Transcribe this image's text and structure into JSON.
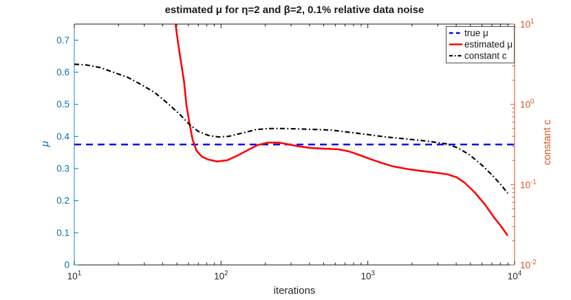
{
  "chart_data": {
    "type": "line",
    "title": "estimated μ for η=2 and β=2, 0.1% relative data noise",
    "xlabel": "iterations",
    "x_axis": {
      "scale": "log",
      "min": 10,
      "max": 10000,
      "color": "#262626",
      "ticks": [
        {
          "value": 10,
          "label": "10^1"
        },
        {
          "value": 100,
          "label": "10^2"
        },
        {
          "value": 1000,
          "label": "10^3"
        },
        {
          "value": 10000,
          "label": "10^4"
        }
      ]
    },
    "y_left": {
      "label": "μ",
      "scale": "linear",
      "min": 0,
      "max": 0.75,
      "color": "#0072BD",
      "ticks": [
        {
          "value": 0,
          "label": "0"
        },
        {
          "value": 0.1,
          "label": "0.1"
        },
        {
          "value": 0.2,
          "label": "0.2"
        },
        {
          "value": 0.3,
          "label": "0.3"
        },
        {
          "value": 0.4,
          "label": "0.4"
        },
        {
          "value": 0.5,
          "label": "0.5"
        },
        {
          "value": 0.6,
          "label": "0.6"
        },
        {
          "value": 0.7,
          "label": "0.7"
        }
      ]
    },
    "y_right": {
      "label": "constant c",
      "scale": "log",
      "min": 0.01,
      "max": 10,
      "color": "#D95319",
      "ticks": [
        {
          "value": 10,
          "label": "10^1"
        },
        {
          "value": 1,
          "label": "10^0"
        },
        {
          "value": 0.1,
          "label": "10^-1"
        },
        {
          "value": 0.01,
          "label": "10^-2"
        }
      ]
    },
    "legend": {
      "position": "top-right",
      "entries": [
        "true μ",
        "estimated μ",
        "constant c"
      ]
    },
    "series": [
      {
        "name": "true μ",
        "axis": "left",
        "color": "#0000FF",
        "style": "dashed",
        "width": 2.6,
        "points": [
          [
            10,
            0.375
          ],
          [
            10000,
            0.375
          ]
        ]
      },
      {
        "name": "estimated μ",
        "axis": "left",
        "color": "#FF0000",
        "style": "solid",
        "width": 2.6,
        "points": [
          [
            48,
            0.85
          ],
          [
            49,
            0.75
          ],
          [
            51,
            0.69
          ],
          [
            53,
            0.64
          ],
          [
            56,
            0.57
          ],
          [
            58,
            0.5
          ],
          [
            61,
            0.44
          ],
          [
            64,
            0.39
          ],
          [
            68,
            0.356
          ],
          [
            74,
            0.337
          ],
          [
            82,
            0.328
          ],
          [
            94,
            0.322
          ],
          [
            110,
            0.326
          ],
          [
            130,
            0.341
          ],
          [
            153,
            0.358
          ],
          [
            177,
            0.373
          ],
          [
            210,
            0.381
          ],
          [
            247,
            0.381
          ],
          [
            290,
            0.375
          ],
          [
            341,
            0.369
          ],
          [
            409,
            0.364
          ],
          [
            507,
            0.362
          ],
          [
            628,
            0.36
          ],
          [
            738,
            0.354
          ],
          [
            867,
            0.343
          ],
          [
            1020,
            0.331
          ],
          [
            1200,
            0.32
          ],
          [
            1480,
            0.307
          ],
          [
            1840,
            0.299
          ],
          [
            2280,
            0.293
          ],
          [
            2820,
            0.288
          ],
          [
            3490,
            0.282
          ],
          [
            4020,
            0.273
          ],
          [
            4570,
            0.256
          ],
          [
            5370,
            0.225
          ],
          [
            6310,
            0.187
          ],
          [
            7240,
            0.148
          ],
          [
            8070,
            0.121
          ],
          [
            8980,
            0.091
          ]
        ]
      },
      {
        "name": "constant c",
        "axis": "right",
        "color": "#000000",
        "style": "dashdot",
        "width": 2.2,
        "points": [
          [
            10,
            3.16
          ],
          [
            12,
            3.1
          ],
          [
            15,
            2.87
          ],
          [
            18,
            2.55
          ],
          [
            23,
            2.18
          ],
          [
            28,
            1.8
          ],
          [
            35,
            1.42
          ],
          [
            43,
            1.04
          ],
          [
            52,
            0.76
          ],
          [
            61,
            0.56
          ],
          [
            70,
            0.46
          ],
          [
            82,
            0.41
          ],
          [
            96,
            0.392
          ],
          [
            113,
            0.4
          ],
          [
            140,
            0.44
          ],
          [
            173,
            0.485
          ],
          [
            215,
            0.5
          ],
          [
            266,
            0.5
          ],
          [
            330,
            0.495
          ],
          [
            431,
            0.487
          ],
          [
            564,
            0.478
          ],
          [
            738,
            0.45
          ],
          [
            964,
            0.424
          ],
          [
            1330,
            0.392
          ],
          [
            1840,
            0.37
          ],
          [
            2540,
            0.348
          ],
          [
            3420,
            0.322
          ],
          [
            4100,
            0.287
          ],
          [
            4920,
            0.236
          ],
          [
            5970,
            0.176
          ],
          [
            7015,
            0.132
          ],
          [
            7980,
            0.102
          ],
          [
            8980,
            0.078
          ]
        ]
      }
    ]
  }
}
